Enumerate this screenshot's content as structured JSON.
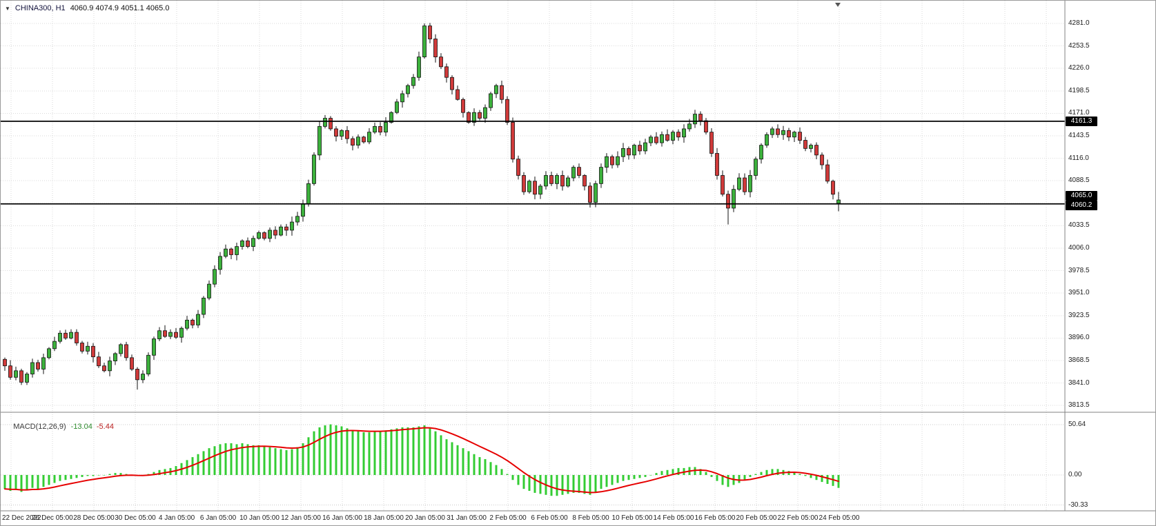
{
  "header": {
    "dropdown_icon": "▼",
    "symbol_period": "CHINA300, H1",
    "ohlc": "4060.9 4074.9 4051.1 4065.0"
  },
  "macd_label": {
    "name": "MACD(12,26,9)",
    "value_main": "-13.04",
    "value_signal": "-5.44"
  },
  "colors": {
    "bull": "#3cb13c",
    "bear": "#d03a3a",
    "candle_outline": "#111111",
    "wick": "#111111",
    "grid": "#dadada",
    "macd_grid": "#c8c8c8",
    "hline": "#000000",
    "macd_histogram": "#33cc33",
    "macd_signal": "#e60000",
    "tag_bg": "#000000",
    "tag_fg": "#ffffff",
    "axis_text": "#1c1c1c",
    "separator": "#808080"
  },
  "chart_data": {
    "type": "candlestick_with_macd",
    "title": "CHINA300, H1",
    "timeframe": "H1",
    "y_ticks": [
      "4281.0",
      "4253.5",
      "4226.0",
      "4198.5",
      "4171.0",
      "4143.5",
      "4116.0",
      "4088.5",
      "4061.0",
      "4033.5",
      "4006.0",
      "3978.5",
      "3951.0",
      "3923.5",
      "3896.0",
      "3868.5",
      "3841.0",
      "3813.5"
    ],
    "x_labels": [
      "22 Dec 2022",
      "26 Dec 05:00",
      "28 Dec 05:00",
      "30 Dec 05:00",
      "4 Jan 05:00",
      "6 Jan 05:00",
      "10 Jan 05:00",
      "12 Jan 05:00",
      "16 Jan 05:00",
      "18 Jan 05:00",
      "20 Jan 05:00",
      "31 Jan 05:00",
      "2 Feb 05:00",
      "6 Feb 05:00",
      "8 Feb 05:00",
      "10 Feb 05:00",
      "14 Feb 05:00",
      "16 Feb 05:00",
      "20 Feb 05:00",
      "22 Feb 05:00",
      "24 Feb 05:00"
    ],
    "price_tags": [
      {
        "label": "4161.3",
        "price": 4161.3,
        "line": true,
        "current": false
      },
      {
        "label": "4065.0",
        "price": 4065.0,
        "line": false,
        "current": true
      },
      {
        "label": "4060.2",
        "price": 4060.2,
        "line": true,
        "current": false
      }
    ],
    "candles": {
      "first_open": 3870,
      "closes": [
        3862,
        3848,
        3856,
        3842,
        3852,
        3866,
        3858,
        3872,
        3883,
        3892,
        3902,
        3896,
        3903,
        3890,
        3880,
        3886,
        3873,
        3862,
        3856,
        3868,
        3877,
        3888,
        3872,
        3858,
        3845,
        3852,
        3875,
        3895,
        3905,
        3898,
        3903,
        3897,
        3908,
        3918,
        3912,
        3925,
        3945,
        3962,
        3980,
        3996,
        4005,
        3998,
        4008,
        4015,
        4008,
        4018,
        4025,
        4018,
        4028,
        4022,
        4032,
        4028,
        4038,
        4045,
        4060,
        4085,
        4120,
        4155,
        4165,
        4152,
        4143,
        4150,
        4140,
        4132,
        4142,
        4136,
        4148,
        4155,
        4148,
        4160,
        4172,
        4185,
        4195,
        4205,
        4215,
        4240,
        4278,
        4262,
        4240,
        4228,
        4215,
        4200,
        4188,
        4172,
        4160,
        4172,
        4165,
        4178,
        4195,
        4205,
        4188,
        4160,
        4115,
        4095,
        4075,
        4088,
        4072,
        4082,
        4095,
        4085,
        4095,
        4082,
        4092,
        4105,
        4095,
        4082,
        4062,
        4085,
        4105,
        4118,
        4108,
        4118,
        4128,
        4120,
        4132,
        4125,
        4135,
        4142,
        4135,
        4145,
        4138,
        4148,
        4142,
        4152,
        4158,
        4170,
        4162,
        4148,
        4122,
        4095,
        4072,
        4055,
        4078,
        4092,
        4075,
        4095,
        4115,
        4132,
        4145,
        4152,
        4145,
        4150,
        4142,
        4148,
        4138,
        4128,
        4132,
        4120,
        4108,
        4088,
        4072,
        4065
      ],
      "overrides": {
        "24": {
          "l": 3833
        },
        "76": {
          "h": 4281.0
        },
        "131": {
          "l": 4035
        },
        "151": {
          "o": 4060.9,
          "h": 4074.9,
          "l": 4051.1,
          "c": 4065.0
        }
      },
      "peak_high": 4281.0,
      "last": {
        "o": 4060.9,
        "h": 4074.9,
        "l": 4051.1,
        "c": 4065.0
      }
    },
    "macd": {
      "params": "12,26,9",
      "scale_labels": [
        "50.64",
        "0.00",
        "-30.33"
      ],
      "range": [
        -30.33,
        50.64
      ],
      "last_main": -13.04,
      "last_signal": -5.44,
      "signal_ema_period": 9,
      "histogram": [
        -14,
        -16,
        -15,
        -17,
        -15,
        -13,
        -14,
        -12,
        -10,
        -8,
        -6,
        -5,
        -4,
        -3,
        -2,
        -1,
        -1,
        0,
        0,
        1,
        2,
        2,
        1,
        0,
        -1,
        -1,
        1,
        3,
        5,
        6,
        7,
        9,
        12,
        15,
        18,
        21,
        24,
        27,
        29,
        31,
        32,
        32,
        31,
        32,
        31,
        30,
        30,
        29,
        28,
        27,
        26,
        25,
        26,
        28,
        32,
        38,
        44,
        48,
        50,
        51,
        50,
        49,
        47,
        45,
        44,
        43,
        43,
        44,
        44,
        45,
        46,
        47,
        48,
        48,
        48,
        49,
        50,
        47,
        44,
        40,
        36,
        33,
        30,
        27,
        24,
        21,
        18,
        16,
        13,
        10,
        6,
        1,
        -5,
        -10,
        -14,
        -16,
        -18,
        -19,
        -20,
        -21,
        -21,
        -20,
        -19,
        -18,
        -18,
        -19,
        -20,
        -17,
        -14,
        -12,
        -10,
        -8,
        -6,
        -5,
        -4,
        -3,
        -2,
        0,
        2,
        4,
        5,
        6,
        7,
        7,
        8,
        8,
        6,
        3,
        -2,
        -6,
        -10,
        -12,
        -10,
        -8,
        -5,
        -2,
        1,
        3,
        5,
        6,
        6,
        5,
        4,
        3,
        1,
        -1,
        -3,
        -5,
        -7,
        -9,
        -11,
        -13
      ]
    }
  }
}
